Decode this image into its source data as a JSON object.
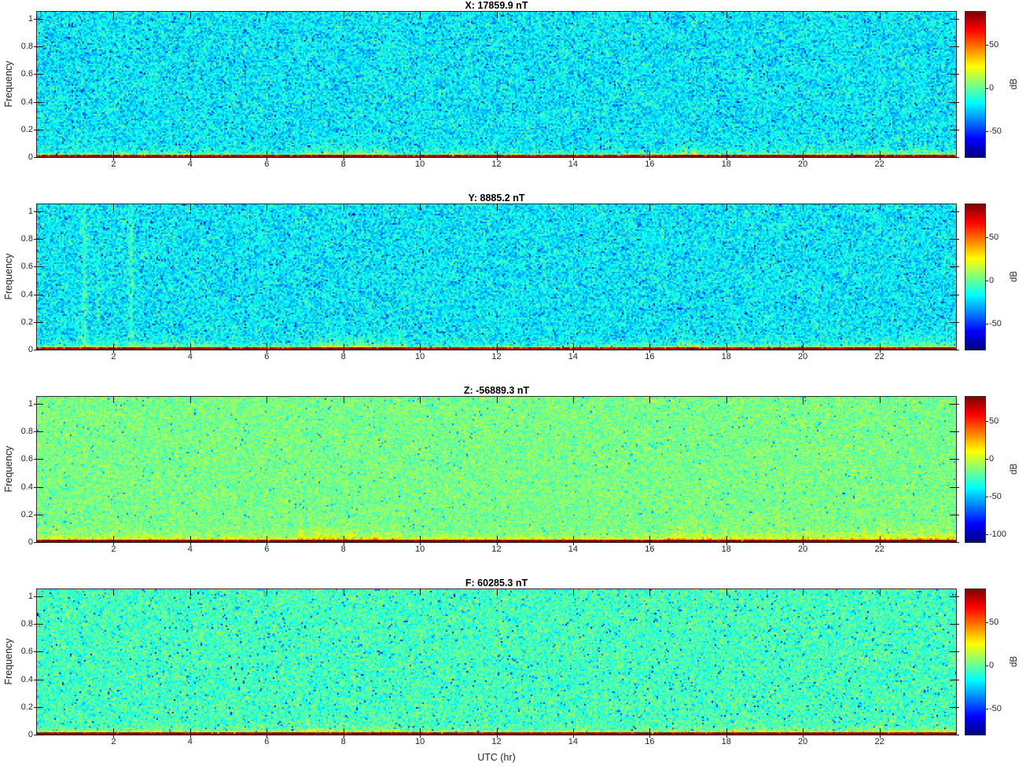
{
  "figure": {
    "background": "#ffffff",
    "axis_color": "#2f2f2f",
    "tick_label_color": "#262626",
    "title_color": "#000000"
  },
  "chart_data": {
    "type": "heatmap",
    "subtype": "spectrogram-grid",
    "colormap": "jet",
    "xlabel": "UTC (hr)",
    "ylabel": "Frequency",
    "colorbar_label": "dB",
    "xlim": [
      0,
      24
    ],
    "ylim": [
      0,
      1.05
    ],
    "x_ticks": [
      2,
      4,
      6,
      8,
      10,
      12,
      14,
      16,
      18,
      20,
      22
    ],
    "y_ticks": [
      0,
      0.2,
      0.4,
      0.6,
      0.8,
      1
    ],
    "legend_position": "right-colorbar-per-panel",
    "grid": false,
    "panels": [
      {
        "name": "X",
        "title": "X: 17859.9 nT",
        "mean_nT": 17859.9,
        "clim_db": [
          -80,
          88
        ],
        "colorbar_ticks": [
          50,
          0,
          -50
        ],
        "background_db": -20,
        "noise_std_db": 10,
        "speckle_prob": 0.018,
        "speckle_drop_db": 24,
        "bottom_glow_db": 45,
        "plumes": [
          {
            "t0": 0.6,
            "t1": 5.2,
            "amp": 11,
            "scale": 0.035
          },
          {
            "t0": 7.0,
            "t1": 9.2,
            "amp": 24,
            "scale": 0.055
          },
          {
            "t0": 10.2,
            "t1": 11.0,
            "amp": 10,
            "scale": 0.035
          },
          {
            "t0": 16.6,
            "t1": 17.4,
            "amp": 26,
            "scale": 0.05
          },
          {
            "t0": 17.8,
            "t1": 23.9,
            "amp": 21,
            "scale": 0.05,
            "ramp": true
          }
        ],
        "streaks": []
      },
      {
        "name": "Y",
        "title": "Y: 8885.2 nT",
        "mean_nT": 8885.2,
        "clim_db": [
          -80,
          88
        ],
        "colorbar_ticks": [
          50,
          0,
          -50
        ],
        "background_db": -20,
        "noise_std_db": 10,
        "speckle_prob": 0.018,
        "speckle_drop_db": 24,
        "bottom_glow_db": 45,
        "plumes": [
          {
            "t0": 0.4,
            "t1": 5.0,
            "amp": 13,
            "scale": 0.04
          },
          {
            "t0": 7.2,
            "t1": 9.6,
            "amp": 26,
            "scale": 0.055
          },
          {
            "t0": 13.8,
            "t1": 14.3,
            "amp": 8,
            "scale": 0.03
          },
          {
            "t0": 16.7,
            "t1": 17.3,
            "amp": 30,
            "scale": 0.055
          },
          {
            "t0": 18.0,
            "t1": 23.9,
            "amp": 22,
            "scale": 0.05,
            "ramp": true
          }
        ],
        "streaks": [
          {
            "t": 1.25,
            "width": 0.07,
            "amp": 15
          },
          {
            "t": 1.6,
            "width": 0.05,
            "amp": 9
          },
          {
            "t": 2.45,
            "width": 0.07,
            "amp": 15
          }
        ]
      },
      {
        "name": "Z",
        "title": "Z: -56889.3 nT",
        "mean_nT": -56889.3,
        "clim_db": [
          -110,
          82
        ],
        "colorbar_ticks": [
          50,
          0,
          -50,
          -100
        ],
        "background_db": -15,
        "noise_std_db": 8,
        "speckle_prob": 0.02,
        "speckle_drop_db": 22,
        "bottom_glow_db": 55,
        "plumes": [
          {
            "t0": 0.3,
            "t1": 6.0,
            "amp": 14,
            "scale": 0.04
          },
          {
            "t0": 6.8,
            "t1": 9.5,
            "amp": 26,
            "scale": 0.055
          },
          {
            "t0": 10.0,
            "t1": 16.0,
            "amp": 8,
            "scale": 0.03
          },
          {
            "t0": 16.4,
            "t1": 17.6,
            "amp": 26,
            "scale": 0.055
          },
          {
            "t0": 17.8,
            "t1": 23.9,
            "amp": 30,
            "scale": 0.06,
            "ramp": true
          }
        ],
        "streaks": []
      },
      {
        "name": "F",
        "title": "F: 60285.3 nT",
        "mean_nT": 60285.3,
        "clim_db": [
          -80,
          88
        ],
        "colorbar_ticks": [
          50,
          0,
          -50
        ],
        "background_db": -6,
        "noise_std_db": 9,
        "speckle_prob": 0.025,
        "speckle_drop_db": 26,
        "bottom_glow_db": 40,
        "plumes": [
          {
            "t0": 0.3,
            "t1": 6.0,
            "amp": 9,
            "scale": 0.035
          },
          {
            "t0": 6.8,
            "t1": 9.5,
            "amp": 16,
            "scale": 0.045
          },
          {
            "t0": 16.5,
            "t1": 23.9,
            "amp": 13,
            "scale": 0.045,
            "ramp": true
          }
        ],
        "streaks": []
      }
    ]
  }
}
